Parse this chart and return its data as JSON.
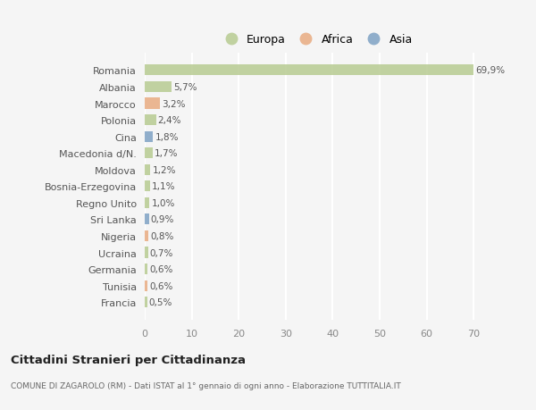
{
  "categories": [
    "Francia",
    "Tunisia",
    "Germania",
    "Ucraina",
    "Nigeria",
    "Sri Lanka",
    "Regno Unito",
    "Bosnia-Erzegovina",
    "Moldova",
    "Macedonia d/N.",
    "Cina",
    "Polonia",
    "Marocco",
    "Albania",
    "Romania"
  ],
  "values": [
    0.5,
    0.6,
    0.6,
    0.7,
    0.8,
    0.9,
    1.0,
    1.1,
    1.2,
    1.7,
    1.8,
    2.4,
    3.2,
    5.7,
    69.9
  ],
  "labels": [
    "0,5%",
    "0,6%",
    "0,6%",
    "0,7%",
    "0,8%",
    "0,9%",
    "1,0%",
    "1,1%",
    "1,2%",
    "1,7%",
    "1,8%",
    "2,4%",
    "3,2%",
    "5,7%",
    "69,9%"
  ],
  "bar_colors": [
    "#b5c98e",
    "#e8a87c",
    "#b5c98e",
    "#b5c98e",
    "#e8a87c",
    "#7a9fc2",
    "#b5c98e",
    "#b5c98e",
    "#b5c98e",
    "#b5c98e",
    "#7a9fc2",
    "#b5c98e",
    "#e8a87c",
    "#b5c98e",
    "#b5c98e"
  ],
  "legend_labels": [
    "Europa",
    "Africa",
    "Asia"
  ],
  "legend_colors": [
    "#b5c98e",
    "#e8a87c",
    "#7a9fc2"
  ],
  "title": "Cittadini Stranieri per Cittadinanza",
  "subtitle": "COMUNE DI ZAGAROLO (RM) - Dati ISTAT al 1° gennaio di ogni anno - Elaborazione TUTTITALIA.IT",
  "xlim": [
    0,
    73
  ],
  "xticks": [
    0,
    10,
    20,
    30,
    40,
    50,
    60,
    70
  ],
  "background_color": "#f5f5f5",
  "grid_color": "#ffffff",
  "bar_alpha": 0.82
}
